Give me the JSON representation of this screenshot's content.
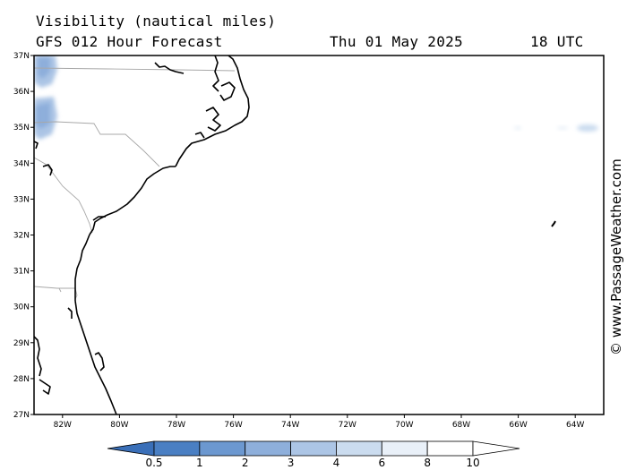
{
  "header": {
    "title": "Visibility (nautical miles)",
    "forecast": "GFS 012 Hour Forecast",
    "date": "Thu 01 May 2025",
    "time": "18 UTC"
  },
  "credit": "© www.PassageWeather.com",
  "map": {
    "lon_labels": [
      "82W",
      "80W",
      "78W",
      "76W",
      "74W",
      "72W",
      "70W",
      "68W",
      "66W",
      "64W"
    ],
    "lat_labels": [
      "37N",
      "36N",
      "35N",
      "34N",
      "33N",
      "32N",
      "31N",
      "30N",
      "29N",
      "28N",
      "27N"
    ],
    "lon_range": [
      -83,
      -63
    ],
    "lat_range": [
      27,
      37
    ],
    "colors": {
      "coast": "#000000",
      "borders": "#a8a8a8",
      "frame": "#000000"
    }
  },
  "colorbar": {
    "labels": [
      "0.5",
      "1",
      "2",
      "3",
      "4",
      "6",
      "8",
      "10"
    ],
    "colors": [
      "#4a7fc3",
      "#6c98d0",
      "#8eafdb",
      "#acc5e5",
      "#cbdcef",
      "#e9f0f8",
      "#ffffff"
    ],
    "under_color": "#3a6fb8",
    "over_color": "#ffffff"
  }
}
